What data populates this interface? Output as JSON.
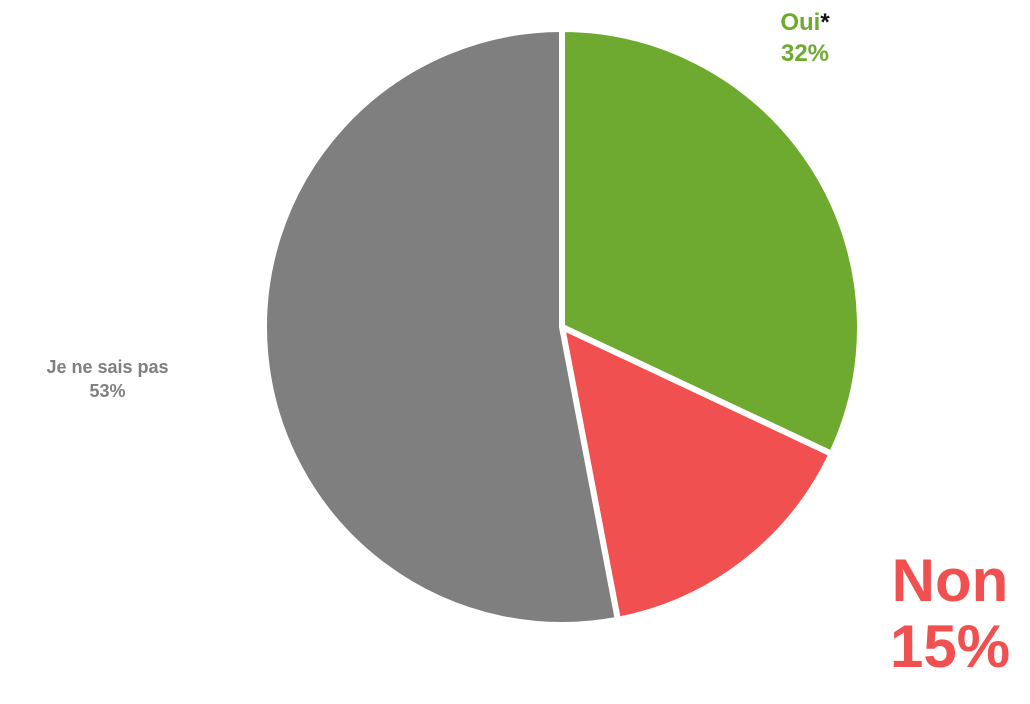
{
  "chart_data": {
    "type": "pie",
    "slices": [
      {
        "label": "Oui",
        "marker": "*",
        "value": 32,
        "value_label": "32%",
        "color": "#6eaa2f"
      },
      {
        "label": "Non",
        "marker": "",
        "value": 15,
        "value_label": "15%",
        "color": "#f05050"
      },
      {
        "label": "Je ne sais pas",
        "marker": "",
        "value": 53,
        "value_label": "53%",
        "color": "#7f7f7f"
      }
    ],
    "start_angle": "12 o'clock",
    "direction": "clockwise",
    "legend": "none"
  }
}
